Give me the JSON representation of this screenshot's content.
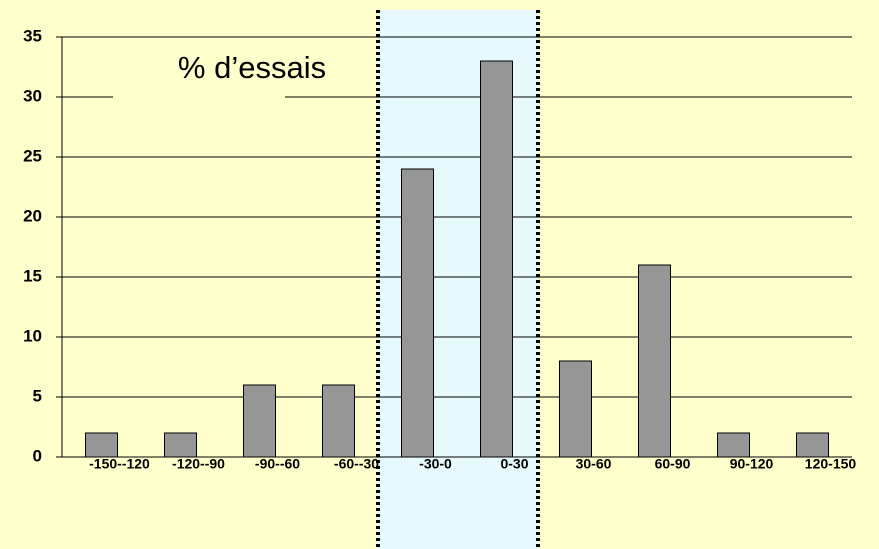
{
  "chart_data": {
    "type": "bar",
    "title": "% d’essais",
    "categories": [
      "-150--120",
      "-120--90",
      "-90--60",
      "-60--30",
      "-30-0",
      "0-30",
      "30-60",
      "60-90",
      "90-120",
      "120-150"
    ],
    "values": [
      2,
      2,
      6,
      6,
      24,
      33,
      8,
      16,
      2,
      2
    ],
    "color": "#969696",
    "ylim": [
      0,
      35
    ],
    "yticks": [
      0,
      5,
      10,
      15,
      20,
      25,
      30,
      35
    ],
    "grid": true
  }
}
